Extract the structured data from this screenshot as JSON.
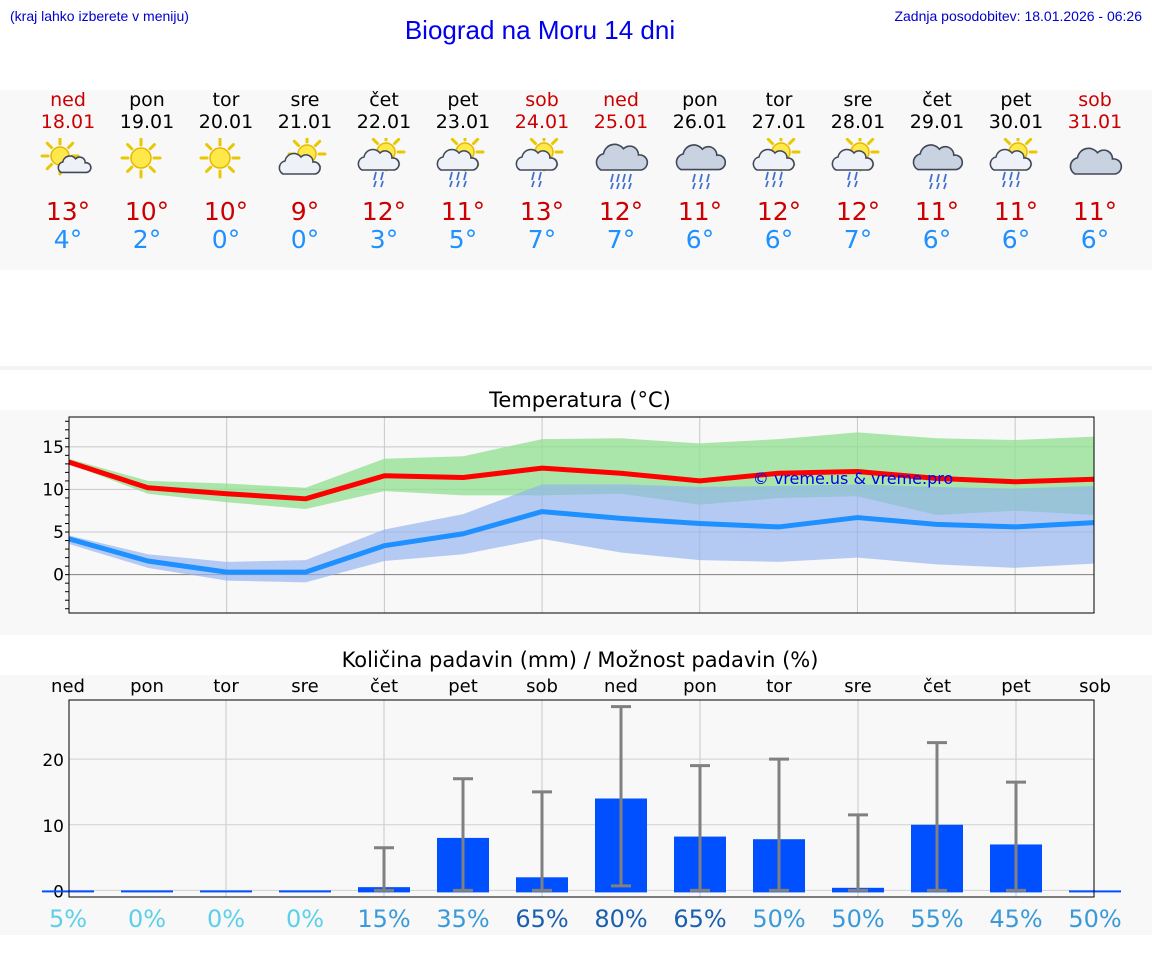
{
  "header": {
    "location_hint": "(kraj lahko izberete v meniju)",
    "title": "Biograd na Moru 14 dni",
    "updated": "Zadnja posodobitev: 18.01.2026 - 06:26"
  },
  "days": [
    {
      "name": "ned",
      "date": "18.01",
      "weekend": true,
      "icon": "sun-cloud-icon",
      "tmax": "13°",
      "tmin": "4°"
    },
    {
      "name": "pon",
      "date": "19.01",
      "weekend": false,
      "icon": "sun-icon",
      "tmax": "10°",
      "tmin": "2°"
    },
    {
      "name": "tor",
      "date": "20.01",
      "weekend": false,
      "icon": "sun-icon",
      "tmax": "10°",
      "tmin": "0°"
    },
    {
      "name": "sre",
      "date": "21.01",
      "weekend": false,
      "icon": "sun-behind-cloud-icon",
      "tmax": "9°",
      "tmin": "0°"
    },
    {
      "name": "čet",
      "date": "22.01",
      "weekend": false,
      "icon": "sun-cloud-light-rain-icon",
      "tmax": "12°",
      "tmin": "3°"
    },
    {
      "name": "pet",
      "date": "23.01",
      "weekend": false,
      "icon": "sun-cloud-rain-icon",
      "tmax": "11°",
      "tmin": "5°"
    },
    {
      "name": "sob",
      "date": "24.01",
      "weekend": true,
      "icon": "sun-cloud-light-rain-icon",
      "tmax": "13°",
      "tmin": "7°"
    },
    {
      "name": "ned",
      "date": "25.01",
      "weekend": true,
      "icon": "cloud-heavy-rain-icon",
      "tmax": "12°",
      "tmin": "7°"
    },
    {
      "name": "pon",
      "date": "26.01",
      "weekend": false,
      "icon": "cloud-rain-icon",
      "tmax": "11°",
      "tmin": "6°"
    },
    {
      "name": "tor",
      "date": "27.01",
      "weekend": false,
      "icon": "sun-cloud-rain-icon",
      "tmax": "12°",
      "tmin": "6°"
    },
    {
      "name": "sre",
      "date": "28.01",
      "weekend": false,
      "icon": "sun-cloud-light-rain-icon",
      "tmax": "12°",
      "tmin": "7°"
    },
    {
      "name": "čet",
      "date": "29.01",
      "weekend": false,
      "icon": "cloud-rain-icon",
      "tmax": "11°",
      "tmin": "6°"
    },
    {
      "name": "pet",
      "date": "30.01",
      "weekend": false,
      "icon": "sun-cloud-rain-icon",
      "tmax": "11°",
      "tmin": "6°"
    },
    {
      "name": "sob",
      "date": "31.01",
      "weekend": true,
      "icon": "cloud-icon",
      "tmax": "11°",
      "tmin": "6°"
    }
  ],
  "colors": {
    "max": "#ff0000",
    "min": "#1e90ff",
    "max_band": "#90e090",
    "min_band": "#90b0f0",
    "bar": "#0050ff",
    "err": "#808080"
  },
  "chart_data": [
    {
      "type": "line",
      "title": "Temperatura (°C)",
      "watermark": "© vreme.us & vreme.pro",
      "ylim": [
        -4.5,
        18.5
      ],
      "yticks": [
        0,
        5,
        10,
        15
      ],
      "x": [
        0,
        1,
        2,
        3,
        4,
        5,
        6,
        7,
        8,
        9,
        10,
        11,
        12,
        13
      ],
      "series": [
        {
          "name": "max",
          "values": [
            13.2,
            10.2,
            9.5,
            8.9,
            11.6,
            11.4,
            12.5,
            11.9,
            11.0,
            11.9,
            12.1,
            11.3,
            10.9,
            11.2
          ],
          "band_low": [
            13.0,
            9.5,
            8.5,
            7.7,
            9.8,
            9.3,
            9.3,
            9.5,
            8.2,
            9.0,
            9.2,
            7.0,
            7.5,
            7.0
          ],
          "band_high": [
            13.6,
            11.0,
            10.7,
            10.2,
            13.6,
            13.9,
            15.9,
            16.0,
            15.4,
            15.9,
            16.7,
            16.0,
            15.8,
            16.2
          ]
        },
        {
          "name": "min",
          "values": [
            4.2,
            1.6,
            0.3,
            0.3,
            3.4,
            4.8,
            7.4,
            6.6,
            6.0,
            5.6,
            6.7,
            5.9,
            5.6,
            6.1
          ],
          "band_low": [
            3.6,
            0.8,
            -0.7,
            -0.9,
            1.6,
            2.4,
            4.2,
            2.6,
            1.7,
            1.5,
            2.0,
            1.2,
            0.8,
            1.3
          ],
          "band_high": [
            4.6,
            2.4,
            1.5,
            1.7,
            5.3,
            7.1,
            10.6,
            10.6,
            10.3,
            10.4,
            10.6,
            10.3,
            10.1,
            10.4
          ]
        }
      ]
    },
    {
      "type": "bar",
      "title": "Količina padavin (mm) / Možnost padavin (%)",
      "categories": [
        "ned",
        "pon",
        "tor",
        "sre",
        "čet",
        "pet",
        "sob",
        "ned",
        "pon",
        "tor",
        "sre",
        "čet",
        "pet",
        "sob"
      ],
      "values": [
        0,
        0,
        0,
        0,
        0.5,
        8,
        2,
        14,
        8.2,
        7.8,
        0.4,
        10,
        7,
        0
      ],
      "err_low": [
        0,
        0,
        0,
        0,
        0,
        0,
        0,
        0.7,
        0,
        0,
        0,
        0,
        0,
        0
      ],
      "err_high": [
        0,
        0,
        0,
        0,
        6.5,
        17,
        15,
        28,
        19,
        20,
        11.5,
        22.5,
        16.5,
        0
      ],
      "ylim": [
        -1,
        29
      ],
      "yticks": [
        0,
        10,
        20
      ],
      "probability": [
        "5%",
        "0%",
        "0%",
        "0%",
        "15%",
        "35%",
        "65%",
        "80%",
        "65%",
        "50%",
        "50%",
        "55%",
        "45%",
        "50%"
      ]
    }
  ]
}
